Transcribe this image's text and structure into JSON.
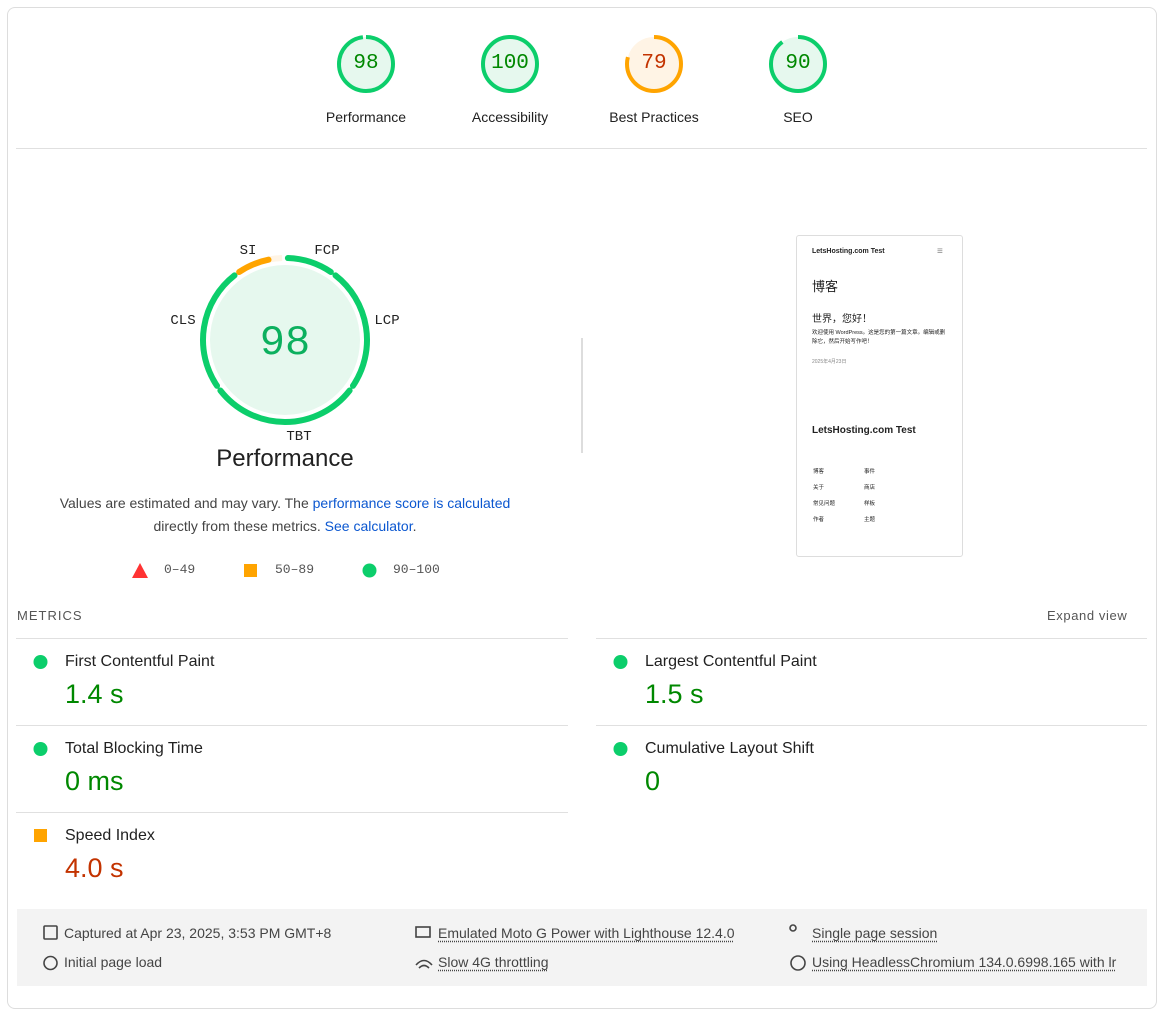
{
  "gauges": [
    {
      "score": 98,
      "label": "Performance",
      "rating": "pass"
    },
    {
      "score": 100,
      "label": "Accessibility",
      "rating": "pass"
    },
    {
      "score": 79,
      "label": "Best Practices",
      "rating": "average"
    },
    {
      "score": 90,
      "label": "SEO",
      "rating": "pass"
    }
  ],
  "performance": {
    "score": 98,
    "title": "Performance",
    "description": [
      "Values are estimated and may vary. The ",
      "performance score is calculated",
      " directly from these metrics. ",
      "See calculator",
      "."
    ],
    "legend": [
      "0–49",
      "50–89",
      "90–100"
    ]
  },
  "screenshot": {
    "site": "LetsHosting.com Test",
    "heading": "博客",
    "post_title": "世界，您好！",
    "post_text": "欢迎使用 WordPress。这是您的第一篇文章。编辑或删除它，然后开始写作吧！",
    "date": "2025年4月23日",
    "footer_title": "LetsHosting.com Test",
    "links": [
      "博客",
      "事件",
      "关于",
      "商店",
      "常见问题",
      "样板",
      "作者",
      "主题"
    ]
  },
  "metrics_header": {
    "title": "METRICS",
    "toggle": "Expand view"
  },
  "metrics": [
    {
      "acronym": "FCP",
      "name": "First Contentful Paint",
      "value": "1.4 s",
      "rating": "pass"
    },
    {
      "acronym": "LCP",
      "name": "Largest Contentful Paint",
      "value": "1.5 s",
      "rating": "pass"
    },
    {
      "acronym": "TBT",
      "name": "Total Blocking Time",
      "value": "0 ms",
      "rating": "pass"
    },
    {
      "acronym": "CLS",
      "name": "Cumulative Layout Shift",
      "value": "0",
      "rating": "pass"
    },
    {
      "acronym": "SI",
      "name": "Speed Index",
      "value": "4.0 s",
      "rating": "average"
    }
  ],
  "footer": [
    "Captured at Apr 23, 2025, 3:53 PM GMT+8",
    "Initial page load",
    "Emulated Moto G Power with Lighthouse 12.4.0",
    "Slow 4G throttling",
    "Single page session",
    "Using HeadlessChromium 134.0.6998.165 with lr"
  ]
}
